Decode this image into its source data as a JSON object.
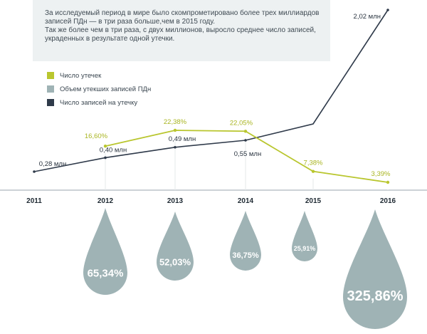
{
  "note": {
    "line1": "За исследуемый период в мире было скомпрометировано более трех миллиардов записей ПДн — в три раза больше,чем в 2015 году.",
    "line2": "Так же более чем в три раза, с двух миллионов, выросло среднее число записей, украденных в результате одной утечки."
  },
  "colors": {
    "leaks": "#b9c62e",
    "volume": "#9fb3b5",
    "per_leak": "#2f3a4a",
    "note_bg": "#edf1f2"
  },
  "chart_data": {
    "type": "line",
    "categories": [
      "2011",
      "2012",
      "2013",
      "2014",
      "2015",
      "2016"
    ],
    "legend_position": "top-left",
    "series": [
      {
        "name": "Число утечек",
        "key": "leaks",
        "type": "line",
        "values": [
          null,
          16.6,
          22.38,
          22.05,
          7.38,
          3.39
        ],
        "labels": [
          null,
          "16,60%",
          "22,38%",
          "22,05%",
          "7,38%",
          "3,39%"
        ]
      },
      {
        "name": "Объем утекших записей ПДн",
        "key": "volume",
        "type": "droplet",
        "values": [
          null,
          65.34,
          52.03,
          36.75,
          25.91,
          325.86
        ],
        "labels": [
          null,
          "65,34%",
          "52,03%",
          "36,75%",
          "25,91%",
          "325,86%"
        ]
      },
      {
        "name": "Число записей на утечку",
        "key": "per_leak",
        "type": "line",
        "unit": "млн",
        "values": [
          0.28,
          0.4,
          0.49,
          0.55,
          null,
          2.02
        ],
        "labels": [
          "0,28 млн",
          "0,40 млн",
          "0,49 млн",
          "0,55 млн",
          null,
          "2,02 млн"
        ]
      }
    ]
  }
}
